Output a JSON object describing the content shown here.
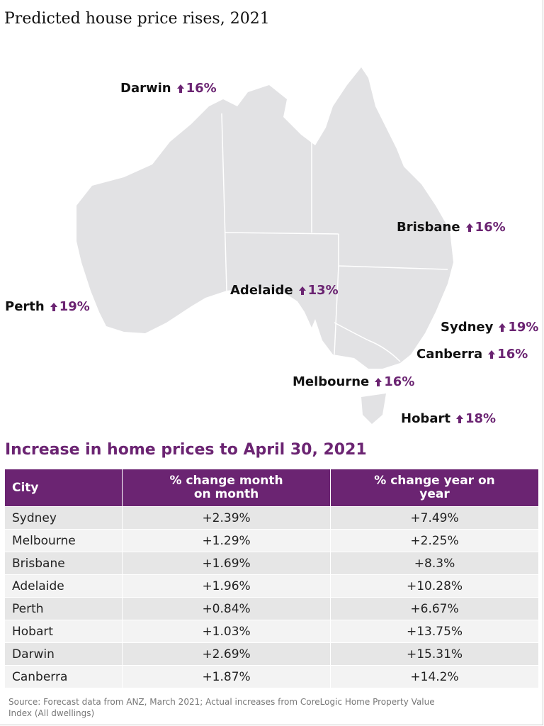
{
  "title": "Predicted house price rises, 2021",
  "map_labels": [
    {
      "city": "Darwin",
      "change": "16%"
    },
    {
      "city": "Brisbane",
      "change": "16%"
    },
    {
      "city": "Adelaide",
      "change": "13%"
    },
    {
      "city": "Perth",
      "change": "19%"
    },
    {
      "city": "Sydney",
      "change": "19%"
    },
    {
      "city": "Canberra",
      "change": "16%"
    },
    {
      "city": "Melbourne",
      "change": "16%"
    },
    {
      "city": "Hobart",
      "change": "18%"
    }
  ],
  "table": {
    "title": "Increase in home prices to April 30, 2021",
    "header": [
      "City",
      "% change month on month",
      "% change year on year"
    ],
    "rows": [
      [
        "Sydney",
        "+2.39%",
        "+7.49%"
      ],
      [
        "Melbourne",
        "+1.29%",
        "+2.25%"
      ],
      [
        "Brisbane",
        "+1.69%",
        "+8.3%"
      ],
      [
        "Adelaide",
        "+1.96%",
        "+10.28%"
      ],
      [
        "Perth",
        "+0.84%",
        "+6.67%"
      ],
      [
        "Hobart",
        "+1.03%",
        "+13.75%"
      ],
      [
        "Darwin",
        "+2.69%",
        "+15.31%"
      ],
      [
        "Canberra",
        "+1.87%",
        "+14.2%"
      ]
    ]
  },
  "source": "Source: Forecast data from ANZ, March 2021; Actual increases from CoreLogic Home Property Value Index (All dwellings)"
}
